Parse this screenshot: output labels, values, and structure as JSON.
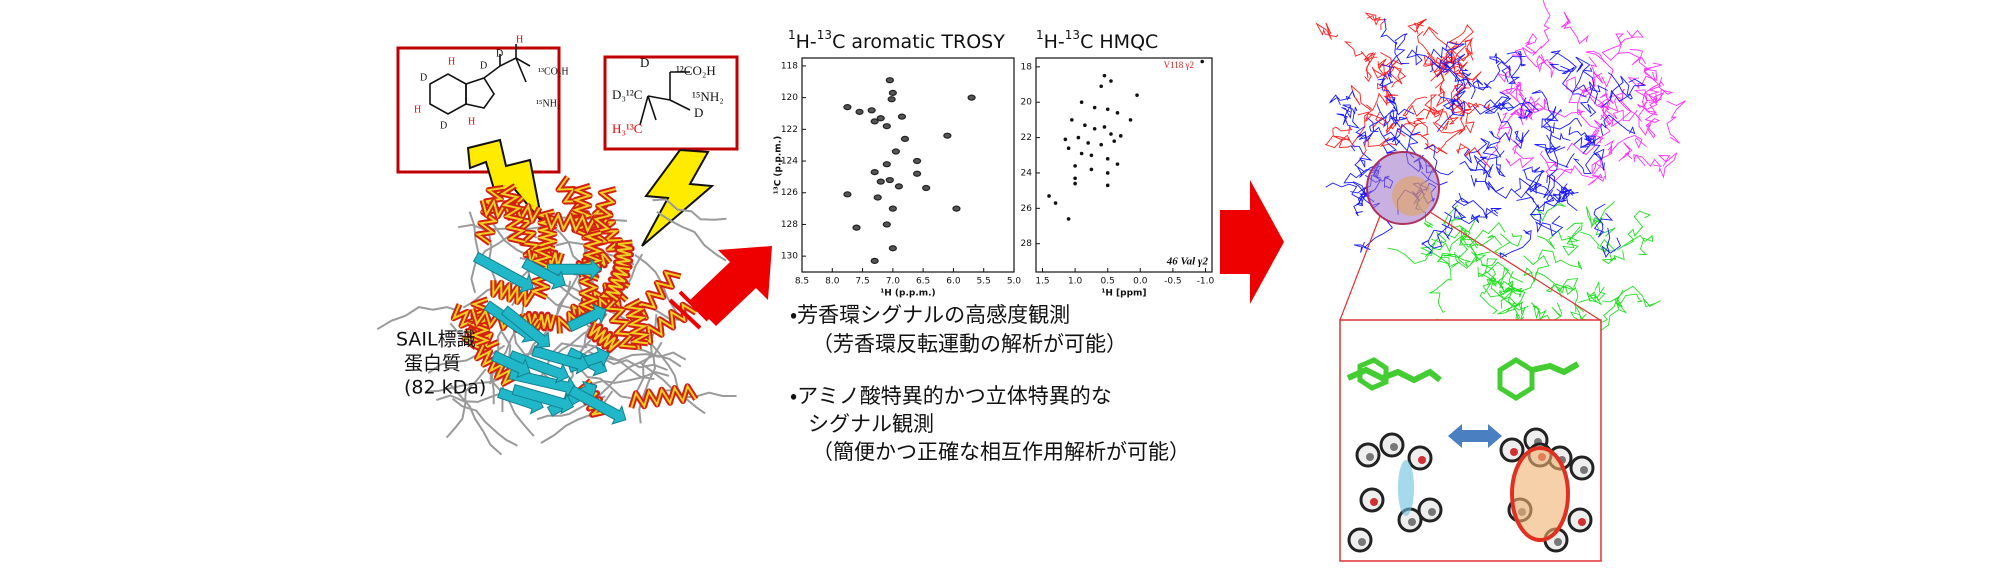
{
  "left_panel": {
    "protein_label": [
      "SAIL標識",
      "蛋白質",
      "(82 kDa)"
    ],
    "trp_labels": [
      "H",
      "D",
      "H",
      "D",
      "H",
      "D",
      "D",
      "H",
      "¹³CO₂H",
      "¹⁵NH₂"
    ],
    "val_labels": [
      "¹²CO₂H",
      "D₃¹²C",
      "D",
      "¹⁵NH₂",
      "H₃¹³C",
      "D"
    ]
  },
  "chart_data": [
    {
      "type": "scatter",
      "title_parts": [
        "1",
        "H-",
        "13",
        "C aromatic TROSY"
      ],
      "x_label": "¹H (p.p.m.)",
      "y_label": "¹³C (p.p.m.)",
      "xlim": [
        8.5,
        5.0
      ],
      "ylim": [
        117.5,
        131
      ],
      "xticks": [
        8.5,
        {
          "value": 8,
          "label": "8.0"
        },
        7.5,
        {
          "value": 7,
          "label": "7.0"
        },
        6.5,
        {
          "value": 6,
          "label": "6.0"
        },
        5.5,
        {
          "value": 5,
          "label": "5.0"
        }
      ],
      "yticks": [
        118,
        120,
        122,
        124,
        126,
        128,
        130
      ],
      "color": "#222222",
      "x": [
        7.05,
        7.0,
        7.02,
        7.75,
        7.55,
        7.35,
        7.3,
        7.2,
        7.1,
        6.85,
        5.7,
        6.1,
        6.8,
        6.95,
        7.1,
        6.6,
        6.6,
        7.3,
        7.05,
        7.2,
        6.9,
        6.45,
        7.25,
        7.75,
        7.0,
        5.95,
        7.6,
        7.1,
        7.0,
        7.3
      ],
      "values": [
        118.9,
        119.7,
        120.1,
        120.6,
        120.9,
        120.8,
        121.5,
        121.3,
        121.8,
        121.2,
        120.0,
        122.4,
        122.6,
        123.4,
        124.2,
        124.0,
        124.8,
        124.7,
        125.2,
        125.3,
        125.6,
        125.7,
        126.3,
        126.1,
        127.0,
        127.0,
        128.2,
        128.0,
        129.5,
        130.3
      ]
    },
    {
      "type": "scatter",
      "title_parts": [
        "1",
        "H-",
        "13",
        "C HMQC"
      ],
      "x_label": "¹H [ppm]",
      "annotations": [
        "46 Val γ2",
        "V118 γ2"
      ],
      "xlim": [
        1.6,
        -1.1
      ],
      "ylim": [
        17.5,
        29.6
      ],
      "xticks": [
        1.5,
        {
          "value": 1,
          "label": "1.0"
        },
        0.5,
        {
          "value": 0,
          "label": "0.0"
        },
        -0.5,
        {
          "value": -1,
          "label": "-1.0"
        }
      ],
      "yticks": [
        18,
        20,
        22,
        24,
        26,
        28
      ],
      "color": "#111111",
      "x": [
        0.55,
        0.45,
        0.6,
        0.05,
        0.9,
        0.7,
        0.5,
        0.35,
        0.15,
        1.05,
        0.85,
        0.7,
        0.55,
        0.45,
        0.3,
        1.15,
        0.95,
        0.8,
        0.6,
        0.4,
        1.1,
        0.9,
        0.75,
        0.5,
        1.0,
        0.75,
        0.5,
        1.0,
        1.4,
        1.3,
        1.0,
        0.5,
        1.1,
        0.35,
        -0.95
      ],
      "values": [
        18.5,
        18.8,
        19.1,
        19.6,
        20.0,
        20.3,
        20.4,
        20.6,
        21.0,
        21.0,
        21.3,
        21.5,
        21.4,
        21.8,
        21.9,
        22.1,
        22.0,
        22.3,
        22.4,
        22.2,
        22.6,
        22.9,
        23.0,
        23.2,
        23.6,
        23.8,
        24.0,
        24.6,
        25.3,
        25.7,
        24.3,
        24.7,
        26.6,
        23.5,
        17.7
      ]
    }
  ],
  "bullets": [
    "・芳香環シグナルの高感度観測",
    "（芳香環反転運動の解析が可能）",
    "・アミノ酸特異的かつ立体特異的な",
    "シグナル観測",
    "（簡便かつ正確な相互作用解析が可能）"
  ]
}
